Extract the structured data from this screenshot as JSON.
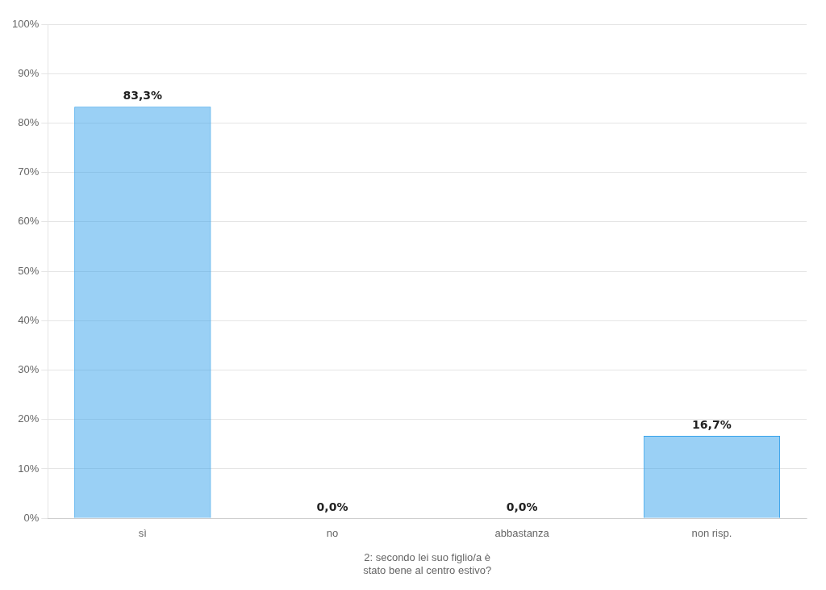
{
  "chart_data": {
    "type": "bar",
    "categories": [
      "sì",
      "no",
      "abbastanza",
      "non risp."
    ],
    "values": [
      83.3,
      0.0,
      0.0,
      16.7
    ],
    "value_labels": [
      "83,3%",
      "0,0%",
      "0,0%",
      "16,7%"
    ],
    "data_labels": true,
    "xlabel": [
      "2: secondo lei suo figlio/a è",
      "stato bene al centro estivo?"
    ],
    "ylim": [
      0,
      100
    ],
    "yticks": [
      {
        "value": 0,
        "label": "0%"
      },
      {
        "value": 10,
        "label": "10%"
      },
      {
        "value": 20,
        "label": "20%"
      },
      {
        "value": 30,
        "label": "30%"
      },
      {
        "value": 40,
        "label": "40%"
      },
      {
        "value": 50,
        "label": "50%"
      },
      {
        "value": 60,
        "label": "60%"
      },
      {
        "value": 70,
        "label": "70%"
      },
      {
        "value": 80,
        "label": "80%"
      },
      {
        "value": 90,
        "label": "90%"
      },
      {
        "value": 100,
        "label": "100%"
      }
    ],
    "grid": true
  }
}
